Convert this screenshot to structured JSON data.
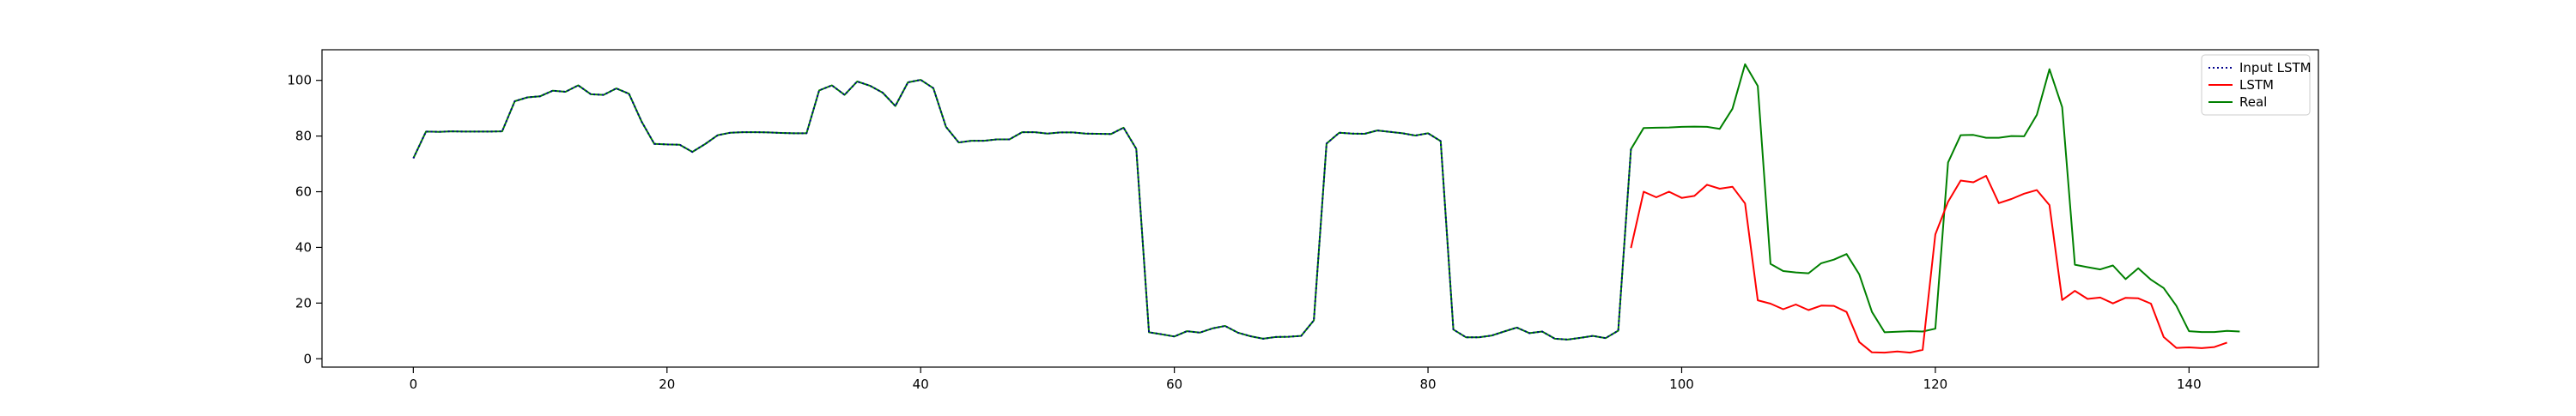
{
  "chart_data": {
    "type": "line",
    "title": "",
    "xlabel": "",
    "ylabel": "",
    "xlim": [
      -7.2,
      150.2
    ],
    "ylim": [
      -3.0,
      111.0
    ],
    "xticks": [
      0,
      20,
      40,
      60,
      80,
      100,
      120,
      140
    ],
    "yticks": [
      0,
      20,
      40,
      60,
      80,
      100
    ],
    "grid": false,
    "legend_position": "top-right",
    "legend": [
      "Input LSTM",
      "LSTM",
      "Real"
    ],
    "series": [
      {
        "name": "Input LSTM",
        "color": "#00008b",
        "linestyle": "dotted",
        "x_start": 0,
        "values": [
          72.0,
          81.6,
          81.5,
          81.7,
          81.6,
          81.6,
          81.6,
          81.7,
          92.5,
          93.9,
          94.3,
          96.3,
          95.9,
          98.2,
          95.0,
          94.8,
          97.1,
          95.2,
          85.2,
          77.2,
          77.0,
          76.9,
          74.3,
          77.1,
          80.3,
          81.2,
          81.4,
          81.4,
          81.3,
          81.1,
          81.0,
          81.0,
          96.4,
          98.2,
          94.8,
          99.6,
          98.1,
          95.6,
          90.8,
          99.3,
          100.2,
          97.2,
          83.3,
          77.7,
          78.3,
          78.3,
          78.8,
          78.8,
          81.4,
          81.4,
          80.9,
          81.3,
          81.3,
          80.9,
          80.8,
          80.7,
          83.0,
          75.4,
          9.5,
          8.8,
          8.0,
          9.9,
          9.4,
          10.9,
          11.8,
          9.4,
          8.1,
          7.2,
          7.8,
          7.9,
          8.2,
          13.8,
          77.3,
          81.2,
          80.9,
          80.8,
          82.0,
          81.5,
          81.0,
          80.2,
          81.0,
          78.2,
          10.5,
          7.7,
          7.7,
          8.3,
          9.8,
          11.2,
          9.2,
          9.8,
          7.2,
          6.9,
          7.5,
          8.2,
          7.4,
          10.1,
          75.3
        ]
      },
      {
        "name": "LSTM",
        "color": "#ff0000",
        "linestyle": "solid",
        "x_start": 96,
        "values": [
          39.8,
          60.0,
          58.0,
          60.0,
          57.8,
          58.5,
          62.5,
          61.1,
          61.8,
          55.8,
          21.0,
          19.8,
          17.8,
          19.5,
          17.5,
          19.1,
          19.0,
          16.8,
          6.0,
          2.3,
          2.2,
          2.6,
          2.2,
          3.2,
          44.7,
          56.4,
          64.0,
          63.4,
          65.7,
          55.9,
          57.4,
          59.3,
          60.6,
          55.2,
          21.1,
          24.4,
          21.5,
          22.0,
          19.9,
          21.9,
          21.7,
          19.8,
          7.8,
          3.9,
          4.1,
          3.8,
          4.2,
          5.8
        ]
      },
      {
        "name": "Real",
        "color": "#008000",
        "linestyle": "solid",
        "x_start": 0,
        "values": [
          72.0,
          81.6,
          81.5,
          81.7,
          81.6,
          81.6,
          81.6,
          81.7,
          92.5,
          93.9,
          94.3,
          96.3,
          95.9,
          98.2,
          95.0,
          94.8,
          97.1,
          95.2,
          85.2,
          77.2,
          77.0,
          76.9,
          74.3,
          77.1,
          80.3,
          81.2,
          81.4,
          81.4,
          81.3,
          81.1,
          81.0,
          81.0,
          96.4,
          98.2,
          94.8,
          99.6,
          98.1,
          95.6,
          90.8,
          99.3,
          100.2,
          97.2,
          83.3,
          77.7,
          78.3,
          78.3,
          78.8,
          78.8,
          81.4,
          81.4,
          80.9,
          81.3,
          81.3,
          80.9,
          80.8,
          80.7,
          83.0,
          75.4,
          9.5,
          8.8,
          8.0,
          9.9,
          9.4,
          10.9,
          11.8,
          9.4,
          8.1,
          7.2,
          7.8,
          7.9,
          8.2,
          13.8,
          77.3,
          81.2,
          80.9,
          80.8,
          82.0,
          81.5,
          81.0,
          80.2,
          81.0,
          78.2,
          10.5,
          7.7,
          7.7,
          8.3,
          9.8,
          11.2,
          9.2,
          9.8,
          7.2,
          6.9,
          7.5,
          8.2,
          7.4,
          10.1,
          75.3,
          82.9,
          83.0,
          83.1,
          83.3,
          83.4,
          83.3,
          82.6,
          89.8,
          105.8,
          98.0,
          34.1,
          31.5,
          31.0,
          30.7,
          34.3,
          35.6,
          37.6,
          30.3,
          16.8,
          9.5,
          9.7,
          9.9,
          9.8,
          10.8,
          70.5,
          80.3,
          80.4,
          79.4,
          79.4,
          80.0,
          79.9,
          87.6,
          104.0,
          90.4,
          33.8,
          32.9,
          32.1,
          33.5,
          28.6,
          32.5,
          28.4,
          25.4,
          19.0,
          9.9,
          9.6,
          9.6,
          10.0,
          9.8
        ]
      }
    ]
  }
}
